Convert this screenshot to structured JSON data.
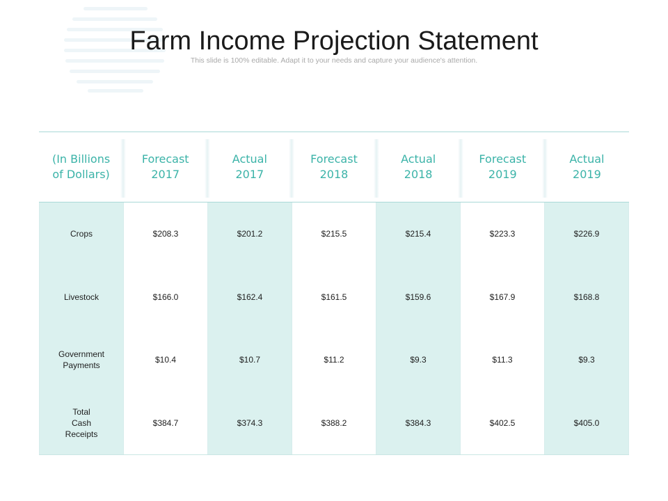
{
  "slide": {
    "title": "Farm Income Projection Statement",
    "subtitle": "This slide is 100% editable. Adapt it to your needs and capture your audience's attention."
  },
  "colors": {
    "accent": "#3bb3a8",
    "shaded_column": "#dbf1ef",
    "rule": "#a9d9d7"
  },
  "table": {
    "headers": [
      [
        "(In Billions",
        "of Dollars)"
      ],
      [
        "Forecast",
        "2017"
      ],
      [
        "Actual",
        "2017"
      ],
      [
        "Forecast",
        "2018"
      ],
      [
        "Actual",
        "2018"
      ],
      [
        "Forecast",
        "2019"
      ],
      [
        "Actual",
        "2019"
      ]
    ],
    "row_labels": [
      "Crops",
      "Livestock",
      "Government Payments",
      "Total  Cash Receipts"
    ],
    "columns": [
      [
        "$208.3",
        "$166.0",
        "$10.4",
        "$384.7"
      ],
      [
        "$201.2",
        "$162.4",
        "$10.7",
        "$374.3"
      ],
      [
        "$215.5",
        "$161.5",
        "$11.2",
        "$388.2"
      ],
      [
        "$215.4",
        "$159.6",
        "$9.3",
        "$384.3"
      ],
      [
        "$223.3",
        "$167.9",
        "$11.3",
        "$402.5"
      ],
      [
        "$226.9",
        "$168.8",
        "$9.3",
        "$405.0"
      ]
    ]
  }
}
